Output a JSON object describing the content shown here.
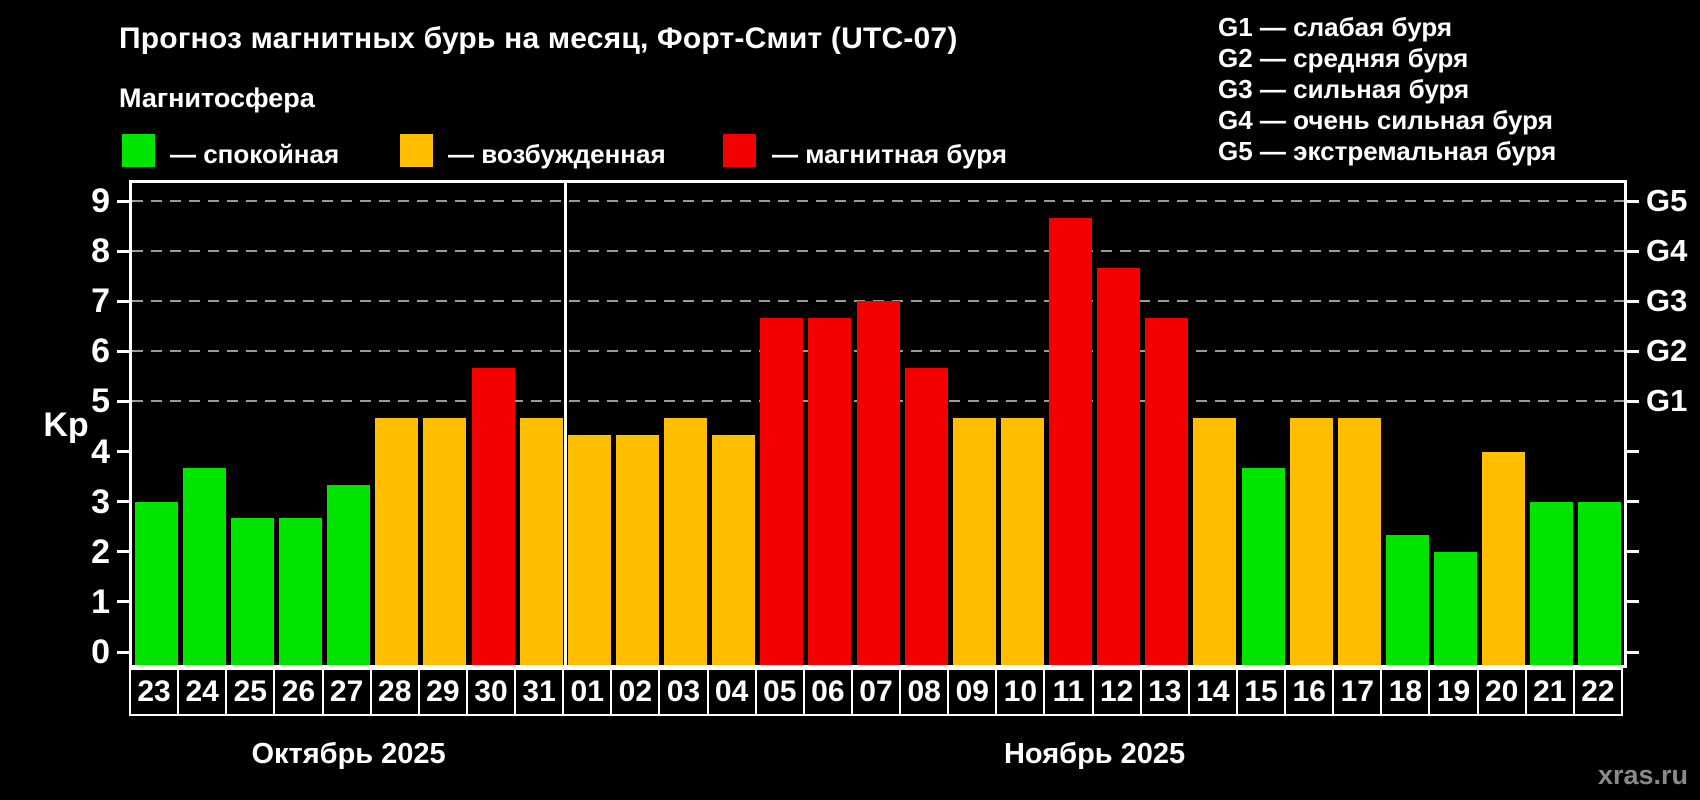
{
  "title": "Прогноз магнитных бурь на месяц, Форт-Смит (UTC-07)",
  "subtitle": "Магнитосфера",
  "legend": [
    {
      "key": "quiet",
      "label": "— спокойная",
      "color": "#00e400"
    },
    {
      "key": "excited",
      "label": "— возбужденная",
      "color": "#ffbe00"
    },
    {
      "key": "storm",
      "label": "— магнитная буря",
      "color": "#f40000"
    }
  ],
  "g_legend": [
    "G1 — слабая буря",
    "G2 — средняя буря",
    "G3 — сильная буря",
    "G4 — очень сильная буря",
    "G5 — экстремальная буря"
  ],
  "watermark": "xras.ru",
  "chart_data": {
    "type": "bar",
    "title": "Прогноз магнитных бурь на месяц, Форт-Смит (UTC-07)",
    "ylabel": "Kp",
    "ylim": [
      0,
      9
    ],
    "yticks": [
      0,
      1,
      2,
      3,
      4,
      5,
      6,
      7,
      8,
      9
    ],
    "gridlines": [
      5,
      6,
      7,
      8,
      9
    ],
    "grid_style": "dashed-gray",
    "legend_position": "top",
    "right_axis": [
      {
        "label": "G1",
        "value": 5
      },
      {
        "label": "G2",
        "value": 6
      },
      {
        "label": "G3",
        "value": 7
      },
      {
        "label": "G4",
        "value": 8
      },
      {
        "label": "G5",
        "value": 9
      }
    ],
    "months": [
      {
        "key": "oct",
        "label": "Октябрь 2025",
        "start_index": 0,
        "count": 9
      },
      {
        "key": "nov",
        "label": "Ноябрь 2025",
        "start_index": 9,
        "count": 22
      }
    ],
    "categories": [
      "23",
      "24",
      "25",
      "26",
      "27",
      "28",
      "29",
      "30",
      "31",
      "01",
      "02",
      "03",
      "04",
      "05",
      "06",
      "07",
      "08",
      "09",
      "10",
      "11",
      "12",
      "13",
      "14",
      "15",
      "16",
      "17",
      "18",
      "19",
      "20",
      "21",
      "22"
    ],
    "values": [
      3,
      3.67,
      2.67,
      2.67,
      3.33,
      4.67,
      4.67,
      5.67,
      4.67,
      4.33,
      4.33,
      4.67,
      4.33,
      6.67,
      6.67,
      7,
      5.67,
      4.67,
      4.67,
      8.67,
      7.67,
      6.67,
      4.67,
      3.67,
      4.67,
      4.67,
      2.33,
      2,
      4,
      3,
      3
    ],
    "bar_states": [
      "quiet",
      "quiet",
      "quiet",
      "quiet",
      "quiet",
      "excited",
      "excited",
      "storm",
      "excited",
      "excited",
      "excited",
      "excited",
      "excited",
      "storm",
      "storm",
      "storm",
      "storm",
      "excited",
      "excited",
      "storm",
      "storm",
      "storm",
      "excited",
      "quiet",
      "excited",
      "excited",
      "quiet",
      "quiet",
      "excited",
      "quiet",
      "quiet"
    ]
  }
}
